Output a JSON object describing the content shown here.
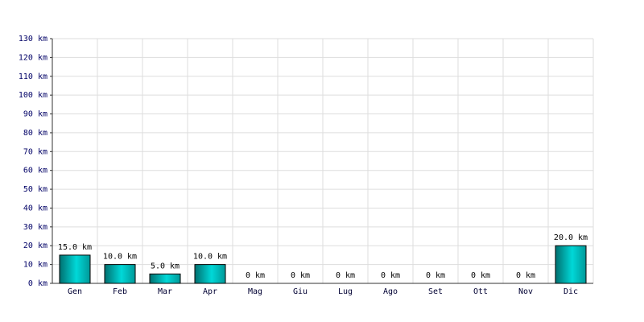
{
  "chart_data": {
    "type": "bar",
    "categories": [
      "Gen",
      "Feb",
      "Mar",
      "Apr",
      "Mag",
      "Giu",
      "Lug",
      "Ago",
      "Set",
      "Ott",
      "Nov",
      "Dic"
    ],
    "values": [
      15,
      10,
      5,
      10,
      0,
      0,
      0,
      0,
      0,
      0,
      0,
      20
    ],
    "value_labels": [
      "15.0 km",
      "10.0 km",
      "5.0 km",
      "10.0 km",
      "0 km",
      "0 km",
      "0 km",
      "0 km",
      "0 km",
      "0 km",
      "0 km",
      "20.0 km"
    ],
    "color": "#00d8d8",
    "ylim": [
      0,
      130
    ],
    "yticks": [
      {
        "value": 0,
        "label": "0 km"
      },
      {
        "value": 10,
        "label": "10 km"
      },
      {
        "value": 20,
        "label": "20 km"
      },
      {
        "value": 30,
        "label": "30 km"
      },
      {
        "value": 40,
        "label": "40 km"
      },
      {
        "value": 50,
        "label": "50 km"
      },
      {
        "value": 60,
        "label": "60 km"
      },
      {
        "value": 70,
        "label": "70 km"
      },
      {
        "value": 80,
        "label": "80 km"
      },
      {
        "value": 90,
        "label": "90 km"
      },
      {
        "value": 100,
        "label": "100 km"
      },
      {
        "value": 110,
        "label": "110 km"
      },
      {
        "value": 120,
        "label": "120 km"
      },
      {
        "value": 130,
        "label": "130 km"
      }
    ],
    "grid": true
  }
}
